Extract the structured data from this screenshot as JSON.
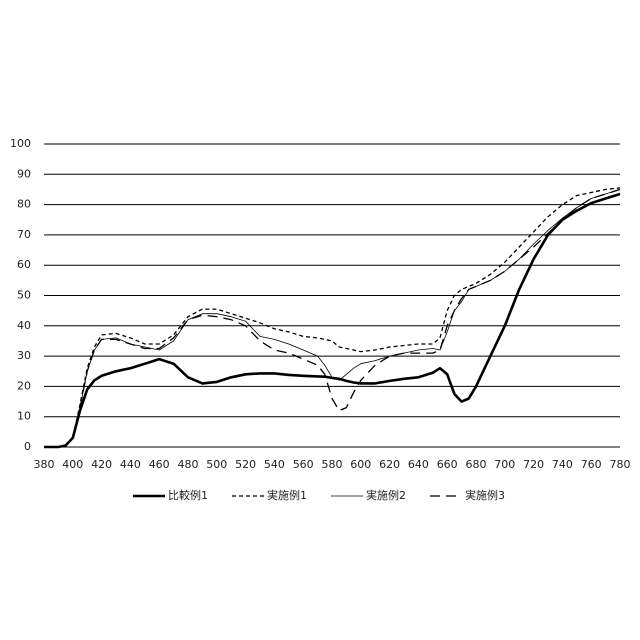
{
  "chart_data": {
    "type": "line",
    "x": [
      380,
      390,
      395,
      400,
      405,
      410,
      415,
      420,
      430,
      440,
      450,
      460,
      470,
      480,
      490,
      500,
      510,
      520,
      530,
      540,
      550,
      560,
      570,
      575,
      580,
      585,
      590,
      595,
      600,
      610,
      620,
      630,
      640,
      650,
      655,
      660,
      665,
      670,
      675,
      680,
      690,
      700,
      710,
      720,
      730,
      740,
      750,
      760,
      770,
      780
    ],
    "series": [
      {
        "name": "比較例1",
        "color": "#000000",
        "style": "thick",
        "values": [
          0,
          0,
          0.5,
          3,
          12,
          19,
          22,
          23.5,
          25,
          26,
          27.5,
          29,
          27.5,
          23,
          21,
          21.5,
          23,
          24,
          24.3,
          24.3,
          23.8,
          23.5,
          23.3,
          23.2,
          22.8,
          22.5,
          21.8,
          21.3,
          21,
          21,
          21.8,
          22.5,
          23,
          24.5,
          26,
          24,
          17.5,
          15,
          16,
          20,
          30,
          40,
          52,
          62,
          70,
          75,
          78,
          80.5,
          82,
          83.5
        ]
      },
      {
        "name": "実施例1",
        "color": "#000000",
        "style": "short-dash",
        "values": [
          0,
          0,
          0.5,
          3,
          14,
          26,
          33,
          37,
          37.5,
          36,
          34,
          34,
          37,
          43,
          45.5,
          45.5,
          44,
          42.5,
          41,
          39,
          38,
          36.5,
          36,
          35.5,
          35,
          33,
          32.5,
          32,
          31.5,
          32,
          33,
          33.5,
          34,
          34,
          36,
          45,
          50,
          52,
          53,
          54,
          57,
          61,
          66,
          71,
          76,
          80,
          83,
          84,
          85,
          85.5
        ]
      },
      {
        "name": "実施例2",
        "color": "#000000",
        "style": "thin",
        "values": [
          0,
          0,
          0.5,
          3,
          13,
          25,
          32,
          35.5,
          36,
          34,
          33,
          32,
          35,
          42,
          44,
          44,
          43,
          41.5,
          36.5,
          35.5,
          34,
          32,
          30,
          27,
          23,
          22,
          24,
          26,
          27.5,
          28.5,
          30,
          31,
          32,
          32.5,
          32,
          38,
          45,
          48,
          52,
          53,
          55,
          58,
          62,
          67,
          71.5,
          75.5,
          79,
          82,
          83.5,
          85
        ]
      },
      {
        "name": "実施例3",
        "color": "#000000",
        "style": "long-dash",
        "values": [
          0,
          0,
          0.5,
          3,
          13,
          25,
          32,
          35.5,
          35.5,
          34,
          32.5,
          32.5,
          36,
          42,
          43.5,
          43,
          42,
          40,
          35,
          32,
          31,
          29,
          27,
          24,
          16,
          12,
          13,
          18,
          22,
          27,
          30,
          31,
          31,
          31,
          32,
          40,
          45,
          49,
          52,
          53,
          55,
          58,
          62,
          66,
          70.5,
          75,
          79,
          82,
          83.5,
          85
        ]
      }
    ],
    "xlim": [
      380,
      780
    ],
    "xticks": [
      380,
      400,
      420,
      440,
      460,
      480,
      500,
      520,
      540,
      560,
      580,
      600,
      620,
      640,
      660,
      680,
      700,
      720,
      740,
      760,
      780
    ],
    "ylim": [
      0,
      100
    ],
    "yticks": [
      0,
      10,
      20,
      30,
      40,
      50,
      60,
      70,
      80,
      90,
      100
    ],
    "grid": true,
    "legend": "bottom"
  }
}
